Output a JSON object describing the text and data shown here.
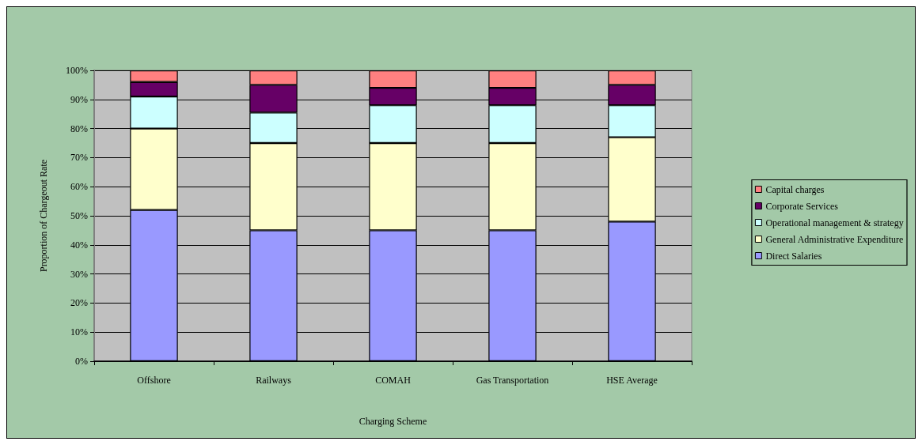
{
  "chart_data": {
    "type": "bar",
    "stacked": true,
    "xlabel": "Charging Scheme",
    "ylabel": "Proportion of Chargeout Rate",
    "categories": [
      "Offshore",
      "Railways",
      "COMAH",
      "Gas Transportation",
      "HSE Average"
    ],
    "series": [
      {
        "name": "Direct Salaries",
        "color": "#9999ff",
        "values": [
          52,
          45,
          45,
          45,
          48
        ]
      },
      {
        "name": "General Administrative Expenditure",
        "color": "#ffffcc",
        "values": [
          28,
          30,
          30,
          30,
          29
        ]
      },
      {
        "name": "Operational management & strategy",
        "color": "#ccffff",
        "values": [
          11,
          10.5,
          13,
          13,
          11
        ]
      },
      {
        "name": "Corporate Services",
        "color": "#660066",
        "values": [
          5,
          9.5,
          6,
          6,
          7
        ]
      },
      {
        "name": "Capital charges",
        "color": "#ff8080",
        "values": [
          4,
          5,
          6,
          6,
          5
        ]
      }
    ],
    "ylim": [
      0,
      100
    ],
    "yticks": [
      {
        "value": 0,
        "label": "0%"
      },
      {
        "value": 10,
        "label": "10%"
      },
      {
        "value": 20,
        "label": "20%"
      },
      {
        "value": 30,
        "label": "30%"
      },
      {
        "value": 40,
        "label": "40%"
      },
      {
        "value": 50,
        "label": "50%"
      },
      {
        "value": 60,
        "label": "60%"
      },
      {
        "value": 70,
        "label": "70%"
      },
      {
        "value": 80,
        "label": "80%"
      },
      {
        "value": 90,
        "label": "90%"
      },
      {
        "value": 100,
        "label": "100%"
      }
    ],
    "grid": "y",
    "legend": "right"
  }
}
